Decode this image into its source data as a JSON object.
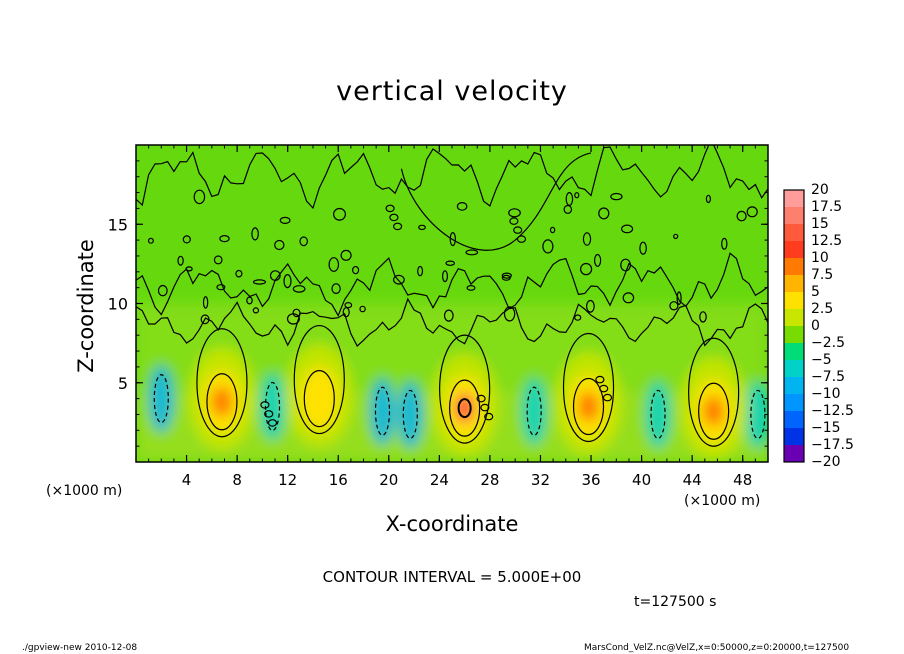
{
  "chart_data": {
    "type": "heatmap",
    "title": "vertical velocity",
    "xlabel": "X-coordinate",
    "ylabel": "Z-coordinate",
    "x_unit": "(×1000 m)",
    "y_unit": "(×1000 m)",
    "xlim": [
      0,
      50
    ],
    "ylim": [
      0,
      20
    ],
    "x_ticks": [
      4,
      8,
      12,
      16,
      20,
      24,
      28,
      32,
      36,
      40,
      44,
      48
    ],
    "y_ticks": [
      5,
      10,
      15
    ],
    "contour_interval_text": "CONTOUR INTERVAL = 5.000E+00",
    "time_text": "t=127500 s",
    "colorbar": {
      "labels": [
        "20",
        "17.5",
        "15",
        "12.5",
        "10",
        "7.5",
        "5",
        "2.5",
        "0",
        "-2.5",
        "-5",
        "-7.5",
        "-10",
        "-12.5",
        "-15",
        "-17.5",
        "-20"
      ],
      "colors": [
        "#ff9c9c",
        "#ff7f6e",
        "#ff5a3c",
        "#ff3c1e",
        "#ff7a00",
        "#ffb400",
        "#ffe100",
        "#c8e600",
        "#78dc00",
        "#00dc78",
        "#00d2c8",
        "#00b4f0",
        "#0096ff",
        "#0064ff",
        "#0032e6",
        "#0014b4",
        "#6a00b4"
      ]
    },
    "updrafts": [
      {
        "x": 6.8,
        "z": 3.8,
        "w": 10
      },
      {
        "x": 14.5,
        "z": 4.0,
        "w": 5
      },
      {
        "x": 26.0,
        "z": 3.4,
        "w": 15
      },
      {
        "x": 35.8,
        "z": 3.5,
        "w": 10
      },
      {
        "x": 45.7,
        "z": 3.2,
        "w": 10
      }
    ],
    "downdrafts": [
      {
        "x": 2.0,
        "z": 4.0,
        "w": -7.5
      },
      {
        "x": 10.8,
        "z": 3.5,
        "w": -5
      },
      {
        "x": 19.5,
        "z": 3.2,
        "w": -7.5
      },
      {
        "x": 21.7,
        "z": 3.0,
        "w": -7.5
      },
      {
        "x": 31.5,
        "z": 3.2,
        "w": -5
      },
      {
        "x": 41.3,
        "z": 3.0,
        "w": -5
      },
      {
        "x": 49.2,
        "z": 3.0,
        "w": -5
      }
    ]
  },
  "footer": {
    "left": "./gpview-new  2010-12-08",
    "right": "MarsCond_VelZ.nc@VelZ,x=0:50000,z=0:20000,t=127500"
  }
}
